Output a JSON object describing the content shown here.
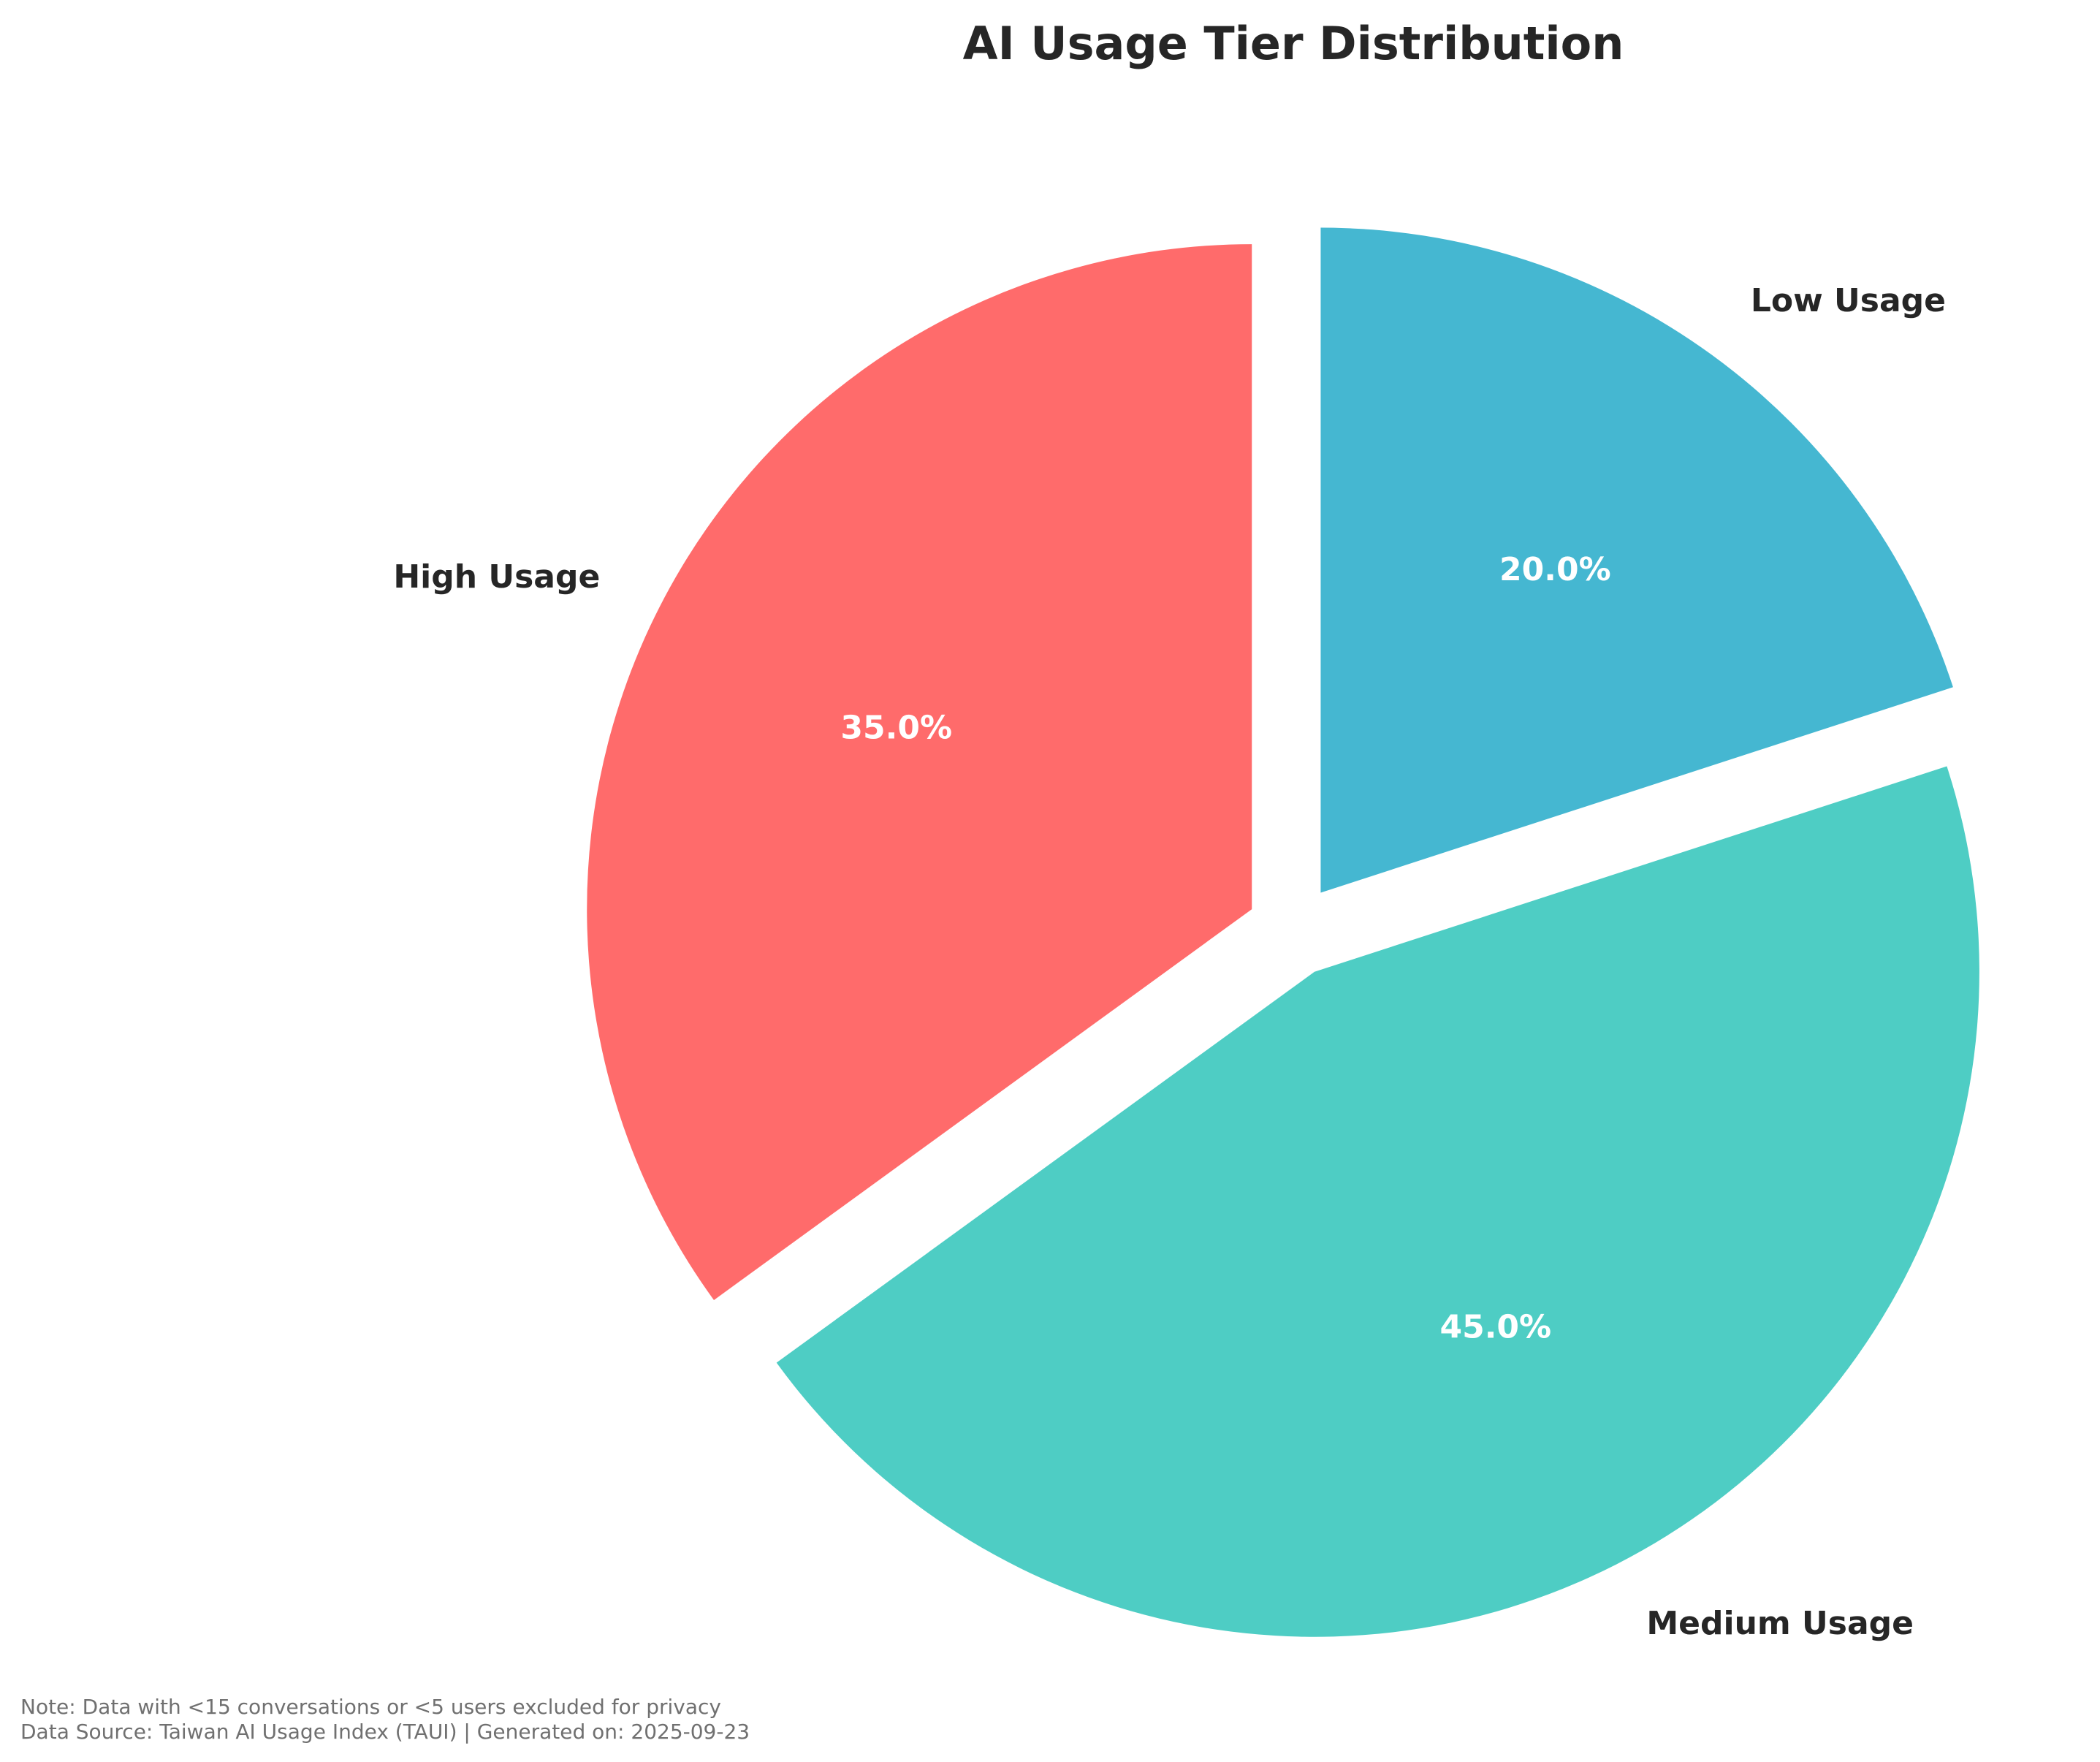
{
  "chart_data": {
    "type": "pie",
    "title": "AI Usage Tier Distribution",
    "categories": [
      "High Usage",
      "Medium Usage",
      "Low Usage"
    ],
    "values": [
      35.0,
      45.0,
      20.0
    ],
    "value_labels": [
      "35.0%",
      "45.0%",
      "20.0%"
    ],
    "colors": [
      "#FF6B6B",
      "#4ECDC4",
      "#45B7D1"
    ],
    "start_angle_deg": 90,
    "direction": "counterclockwise",
    "exploded": true,
    "legend": "none"
  },
  "footer": {
    "note": "Note: Data with <15 conversations or <5 users excluded for privacy",
    "source": "Data Source: Taiwan AI Usage Index (TAUI) | Generated on: 2025-09-23"
  }
}
